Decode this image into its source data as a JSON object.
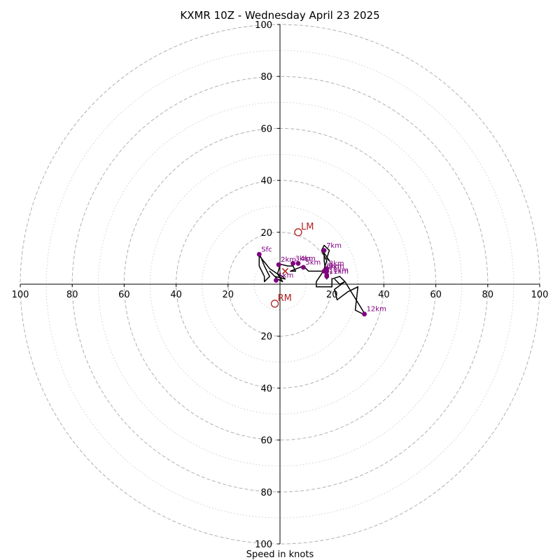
{
  "chart_data": {
    "type": "hodograph",
    "title": "KXMR 10Z - Wednesday April 23 2025",
    "xlabel": "Speed in knots",
    "rings_dashed": [
      20,
      40,
      60,
      80,
      100
    ],
    "rings_dotted": [
      10,
      30,
      50,
      70,
      90
    ],
    "tick_labels": [
      "100",
      "80",
      "60",
      "40",
      "20"
    ],
    "xlim": [
      -100,
      100
    ],
    "ylim": [
      -100,
      100
    ],
    "colors": {
      "ring": "#b0b0b0",
      "trace": "#000000",
      "height_point": "#800080",
      "motion": "#b22222"
    },
    "trace": [
      [
        -8,
        12
      ],
      [
        -6,
        7
      ],
      [
        -4,
        3
      ],
      [
        -5,
        2
      ],
      [
        -6,
        1
      ],
      [
        -6,
        3
      ],
      [
        -7,
        5
      ],
      [
        -8,
        7
      ],
      [
        -8,
        9
      ],
      [
        -8,
        11
      ],
      [
        -4,
        6
      ],
      [
        -1,
        4
      ],
      [
        1,
        3
      ],
      [
        2,
        2
      ],
      [
        -2,
        3
      ],
      [
        -4,
        5
      ],
      [
        -1,
        2
      ],
      [
        1,
        1
      ],
      [
        -1,
        4
      ],
      [
        0,
        7
      ],
      [
        -1,
        8
      ],
      [
        3,
        7
      ],
      [
        5,
        7
      ],
      [
        6,
        5
      ],
      [
        4,
        5
      ],
      [
        9,
        7
      ],
      [
        10,
        6
      ],
      [
        11,
        5
      ],
      [
        14,
        5
      ],
      [
        17,
        5
      ],
      [
        18,
        4
      ],
      [
        18,
        2
      ],
      [
        17,
        9
      ],
      [
        17,
        12
      ],
      [
        19,
        9
      ],
      [
        18,
        10
      ],
      [
        19,
        13
      ],
      [
        17,
        15
      ],
      [
        16,
        13
      ],
      [
        18,
        9
      ],
      [
        17,
        6
      ],
      [
        16,
        4
      ],
      [
        14,
        1
      ],
      [
        14,
        -1
      ],
      [
        20,
        -1
      ],
      [
        20,
        2
      ],
      [
        23,
        3
      ],
      [
        25,
        1
      ],
      [
        21,
        -2
      ],
      [
        22,
        -6
      ],
      [
        26,
        -3
      ],
      [
        30,
        -1
      ],
      [
        29,
        -10
      ],
      [
        33,
        -12
      ],
      [
        25,
        1
      ],
      [
        23,
        0
      ],
      [
        21,
        2
      ]
    ],
    "height_points": [
      {
        "label": "Sfc",
        "u": -8,
        "v": 11.5
      },
      {
        "label": "1km",
        "u": -1.5,
        "v": 1.5
      },
      {
        "label": "2km",
        "u": -0.5,
        "v": 7.5
      },
      {
        "label": "3km",
        "u": 5,
        "v": 8
      },
      {
        "label": "4km",
        "u": 7,
        "v": 8
      },
      {
        "label": "5km",
        "u": 9,
        "v": 6.5
      },
      {
        "label": "6km",
        "u": 17,
        "v": 5
      },
      {
        "label": "7km",
        "u": 17,
        "v": 13
      },
      {
        "label": "8km",
        "u": 18,
        "v": 6
      },
      {
        "label": "9km",
        "u": 18,
        "v": 5
      },
      {
        "label": "10km",
        "u": 18,
        "v": 3.5
      },
      {
        "label": "11km",
        "u": 18,
        "v": 3
      },
      {
        "label": "12km",
        "u": 32.5,
        "v": -11.5
      }
    ],
    "storm_motions": [
      {
        "label": "LM",
        "u": 7,
        "v": 20
      },
      {
        "label": "RM",
        "u": -2,
        "v": -7.5
      }
    ],
    "mean_wind_marker": {
      "u": 2,
      "v": 5
    }
  }
}
